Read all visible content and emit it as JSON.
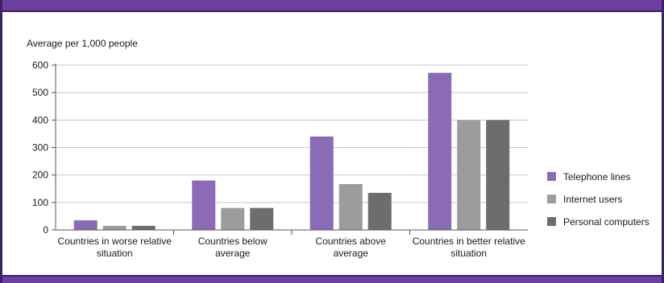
{
  "chart_data": {
    "type": "bar",
    "ylabel": "Average per 1,000 people",
    "ylim": [
      0,
      600
    ],
    "yticks": [
      0,
      100,
      200,
      300,
      400,
      500,
      600
    ],
    "grid": true,
    "legend_position": "right",
    "categories": [
      [
        "Countries in worse relative",
        "situation"
      ],
      [
        "Countries below",
        "average"
      ],
      [
        "Countries above",
        "average"
      ],
      [
        "Countries in better relative",
        "situation"
      ]
    ],
    "series": [
      {
        "name": "Telephone lines",
        "color": "#8b6bb5",
        "values": [
          35,
          180,
          340,
          572
        ]
      },
      {
        "name": "Internet users",
        "color": "#9c9c9c",
        "values": [
          15,
          80,
          167,
          400
        ]
      },
      {
        "name": "Personal computers",
        "color": "#6d6d6d",
        "values": [
          15,
          80,
          135,
          400
        ]
      }
    ]
  }
}
